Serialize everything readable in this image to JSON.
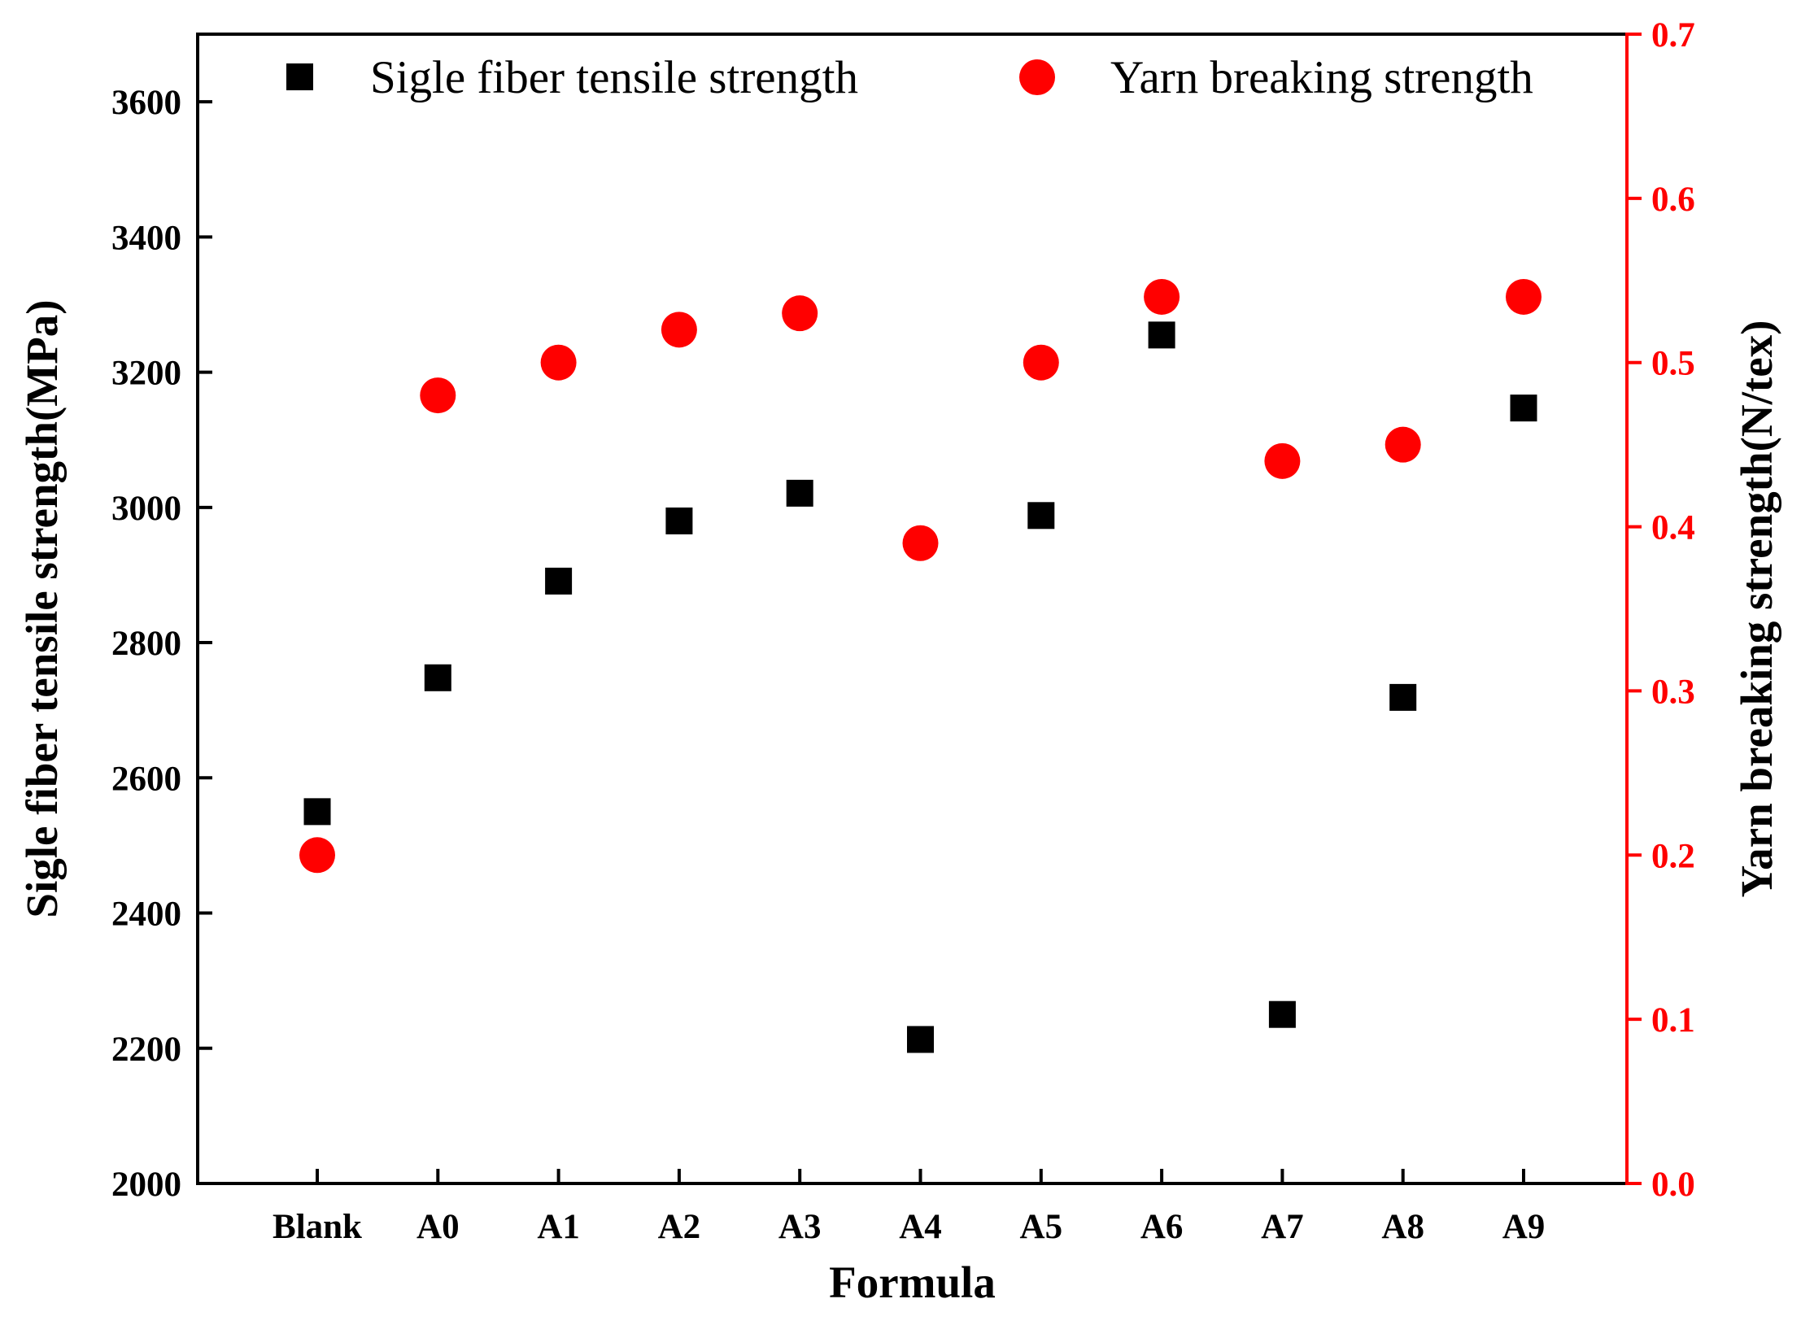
{
  "chart_data": {
    "type": "scatter",
    "categories": [
      "Blank",
      "A0",
      "A1",
      "A2",
      "A3",
      "A4",
      "A5",
      "A6",
      "A7",
      "A8",
      "A9"
    ],
    "xlabel": "Formula",
    "ylabel": "Sigle fiber tensile strength(MPa)",
    "y2label": "Yarn breaking strength(N/tex)",
    "ylim": [
      2000,
      3700
    ],
    "y2lim": [
      0.0,
      0.7
    ],
    "yticks": [
      2000,
      2200,
      2400,
      2600,
      2800,
      3000,
      3200,
      3400,
      3600
    ],
    "ytick_labels": [
      "2000",
      "2200",
      "2400",
      "2600",
      "2800",
      "3000",
      "3200",
      "3400",
      "3600"
    ],
    "y2ticks": [
      0.0,
      0.1,
      0.2,
      0.3,
      0.4,
      0.5,
      0.6,
      0.7
    ],
    "y2tick_labels": [
      "0.0",
      "0.1",
      "0.2",
      "0.3",
      "0.4",
      "0.5",
      "0.6",
      "0.7"
    ],
    "legend_position": "top",
    "series": [
      {
        "name": "Sigle fiber tensile strength",
        "axis": "left",
        "marker": "square",
        "color": "#000000",
        "values": [
          2550,
          2748,
          2891,
          2980,
          3021,
          2213,
          2988,
          3255,
          2250,
          2719,
          3147
        ]
      },
      {
        "name": "Yarn breaking strength",
        "axis": "right",
        "marker": "circle",
        "color": "#ff0000",
        "values": [
          0.2,
          0.48,
          0.5,
          0.52,
          0.53,
          0.39,
          0.5,
          0.54,
          0.44,
          0.45,
          0.54
        ]
      }
    ]
  },
  "colors": {
    "left_axis": "#000000",
    "right_axis": "#ff0000"
  }
}
